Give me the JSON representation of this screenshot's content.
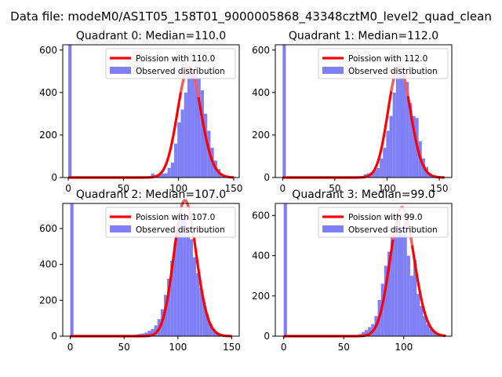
{
  "figure": {
    "suptitle": "Data file: modeM0/AS1T05_158T01_9000005868_43348cztM0_level2_quad_clean"
  },
  "colors": {
    "observed": "#7f7ff7",
    "poisson": "#ff0000",
    "poisson_peak_highlight": "#f7a0a0"
  },
  "chart_data": [
    {
      "type": "bar",
      "title": "Quadrant 0: Median=110.0",
      "xlim": [
        -5,
        155
      ],
      "ylim": [
        0,
        625
      ],
      "xticks": [
        0,
        50,
        100,
        150
      ],
      "yticks": [
        0,
        200,
        400,
        600
      ],
      "legend": {
        "placement": "top-right",
        "entries": [
          "Poission with 110.0",
          "Observed distribution"
        ]
      },
      "series": [
        {
          "name": "Poission with 110.0",
          "kind": "line",
          "lambda": 110.0,
          "x_range": [
            0,
            150
          ]
        },
        {
          "name": "Observed distribution",
          "kind": "histogram",
          "bin_edges": [
            0,
            3,
            6,
            9,
            12,
            15,
            18,
            21,
            24,
            27,
            30,
            33,
            36,
            39,
            42,
            45,
            48,
            51,
            54,
            57,
            60,
            63,
            66,
            69,
            72,
            75,
            78,
            81,
            84,
            87,
            90,
            93,
            96,
            99,
            102,
            105,
            108,
            111,
            114,
            117,
            120,
            123,
            126,
            129,
            132,
            135,
            138,
            141,
            144,
            147,
            150
          ],
          "counts": [
            650,
            0,
            0,
            0,
            0,
            0,
            0,
            0,
            0,
            0,
            0,
            0,
            0,
            0,
            0,
            0,
            0,
            0,
            0,
            0,
            0,
            0,
            0,
            0,
            0,
            18,
            5,
            12,
            18,
            20,
            45,
            70,
            160,
            260,
            320,
            400,
            520,
            500,
            520,
            470,
            410,
            300,
            220,
            140,
            80,
            40,
            15,
            8,
            5,
            3
          ]
        }
      ]
    },
    {
      "type": "bar",
      "title": "Quadrant 1: Median=112.0",
      "xlim": [
        -7,
        162
      ],
      "ylim": [
        0,
        625
      ],
      "xticks": [
        0,
        50,
        100,
        150
      ],
      "yticks": [
        0,
        200,
        400,
        600
      ],
      "legend": {
        "placement": "top-right",
        "entries": [
          "Poission with 112.0",
          "Observed distribution"
        ]
      },
      "series": [
        {
          "name": "Poission with 112.0",
          "kind": "line",
          "lambda": 112.0,
          "x_range": [
            0,
            155
          ]
        },
        {
          "name": "Observed distribution",
          "kind": "histogram",
          "bin_edges": [
            0,
            3.1,
            6.2,
            9.3,
            12.4,
            15.5,
            18.6,
            21.7,
            24.8,
            27.9,
            31,
            34.1,
            37.2,
            40.3,
            43.4,
            46.5,
            49.6,
            52.7,
            55.8,
            58.9,
            62,
            65.1,
            68.2,
            71.3,
            74.4,
            77.5,
            80.6,
            83.7,
            86.8,
            89.9,
            93,
            96.1,
            99.2,
            102.3,
            105.4,
            108.5,
            111.6,
            114.7,
            117.8,
            120.9,
            124,
            127.1,
            130.2,
            133.3,
            136.4,
            139.5,
            142.6,
            145.7,
            148.8,
            151.9,
            155
          ],
          "counts": [
            650,
            0,
            0,
            0,
            0,
            0,
            0,
            0,
            0,
            0,
            0,
            0,
            0,
            0,
            0,
            0,
            0,
            0,
            0,
            0,
            0,
            0,
            0,
            0,
            0,
            15,
            20,
            25,
            35,
            45,
            90,
            140,
            220,
            290,
            400,
            480,
            520,
            490,
            450,
            350,
            290,
            280,
            170,
            90,
            50,
            20,
            10,
            5,
            3,
            2
          ]
        }
      ]
    },
    {
      "type": "bar",
      "title": "Quadrant 2: Median=107.0",
      "xlim": [
        -7,
        157
      ],
      "ylim": [
        0,
        740
      ],
      "xticks": [
        0,
        50,
        100,
        150
      ],
      "yticks": [
        0,
        200,
        400,
        600
      ],
      "legend": {
        "placement": "top-right",
        "entries": [
          "Poission with 107.0",
          "Observed distribution"
        ]
      },
      "series": [
        {
          "name": "Poission with 107.0",
          "kind": "line",
          "lambda": 107.0,
          "x_range": [
            0,
            150
          ]
        },
        {
          "name": "Observed distribution",
          "kind": "histogram",
          "bin_edges": [
            0,
            3,
            6,
            9,
            12,
            15,
            18,
            21,
            24,
            27,
            30,
            33,
            36,
            39,
            42,
            45,
            48,
            51,
            54,
            57,
            60,
            63,
            66,
            69,
            72,
            75,
            78,
            81,
            84,
            87,
            90,
            93,
            96,
            99,
            102,
            105,
            108,
            111,
            114,
            117,
            120,
            123,
            126,
            129,
            132,
            135,
            138,
            141,
            144,
            147,
            150
          ],
          "counts": [
            760,
            0,
            0,
            0,
            0,
            0,
            0,
            0,
            0,
            0,
            0,
            0,
            0,
            0,
            0,
            0,
            0,
            0,
            0,
            0,
            8,
            12,
            15,
            20,
            30,
            40,
            60,
            95,
            150,
            230,
            320,
            420,
            520,
            620,
            690,
            660,
            600,
            540,
            440,
            350,
            270,
            190,
            120,
            70,
            40,
            20,
            10,
            5,
            3,
            2
          ]
        }
      ]
    },
    {
      "type": "bar",
      "title": "Quadrant 3: Median=99.0",
      "xlim": [
        -7,
        140
      ],
      "ylim": [
        0,
        660
      ],
      "xticks": [
        0,
        50,
        100
      ],
      "yticks": [
        0,
        200,
        400,
        600
      ],
      "legend": {
        "placement": "top-right",
        "entries": [
          "Poission with 99.0",
          "Observed distribution"
        ]
      },
      "series": [
        {
          "name": "Poission with 99.0",
          "kind": "line",
          "lambda": 99.0,
          "x_range": [
            0,
            135
          ]
        },
        {
          "name": "Observed distribution",
          "kind": "histogram",
          "bin_edges": [
            0,
            2.7,
            5.4,
            8.1,
            10.8,
            13.5,
            16.2,
            18.9,
            21.6,
            24.3,
            27,
            29.7,
            32.4,
            35.1,
            37.8,
            40.5,
            43.2,
            45.9,
            48.6,
            51.3,
            54,
            56.7,
            59.4,
            62.1,
            64.8,
            67.5,
            70.2,
            72.9,
            75.6,
            78.3,
            81,
            83.7,
            86.4,
            89.1,
            91.8,
            94.5,
            97.2,
            99.9,
            102.6,
            105.3,
            108,
            110.7,
            113.4,
            116.1,
            118.8,
            121.5,
            124.2,
            126.9,
            129.6,
            132.3,
            135
          ],
          "counts": [
            680,
            0,
            0,
            0,
            0,
            0,
            0,
            0,
            0,
            0,
            0,
            0,
            0,
            0,
            0,
            0,
            0,
            0,
            0,
            0,
            0,
            0,
            5,
            10,
            20,
            30,
            45,
            60,
            100,
            180,
            260,
            350,
            420,
            500,
            540,
            600,
            530,
            600,
            400,
            300,
            380,
            210,
            150,
            100,
            60,
            35,
            20,
            10,
            5,
            2
          ]
        }
      ]
    }
  ]
}
